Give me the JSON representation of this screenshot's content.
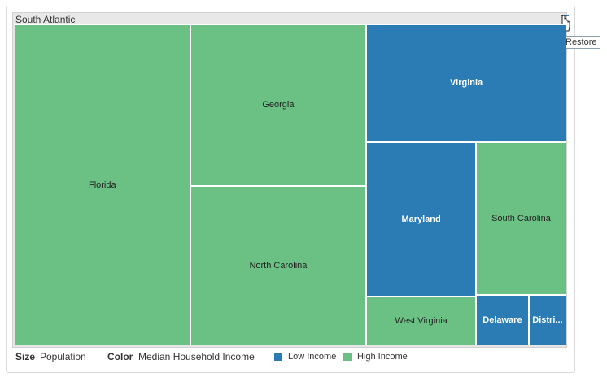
{
  "panel": {
    "title": "South Atlantic",
    "restore_tooltip": "Restore",
    "restore_icon": "hand-pointer-icon"
  },
  "legend": {
    "size_key": "Size",
    "size_value": "Population",
    "color_key": "Color",
    "color_value": "Median Household Income",
    "items": [
      {
        "label": "Low Income",
        "color": "#2b7bb5"
      },
      {
        "label": "High Income",
        "color": "#6bc084"
      }
    ]
  },
  "chart_data": {
    "type": "treemap",
    "title": "South Atlantic",
    "size_measure": "Population",
    "color_measure": "Median Household Income",
    "categories": [
      {
        "name": "Florida",
        "size": 19.6,
        "color_group": "High Income"
      },
      {
        "name": "Georgia",
        "size": 9.9,
        "color_group": "High Income"
      },
      {
        "name": "North Carolina",
        "size": 9.8,
        "color_group": "High Income"
      },
      {
        "name": "Virginia",
        "size": 8.2,
        "color_group": "Low Income"
      },
      {
        "name": "Maryland",
        "size": 5.9,
        "color_group": "Low Income"
      },
      {
        "name": "South Carolina",
        "size": 4.8,
        "color_group": "High Income"
      },
      {
        "name": "West Virginia",
        "size": 1.85,
        "color_group": "High Income"
      },
      {
        "name": "Delaware",
        "size": 0.93,
        "color_group": "Low Income"
      },
      {
        "name": "Distri...",
        "size": 0.66,
        "color_group": "Low Income"
      }
    ],
    "colors": {
      "Low Income": "#2b7bb5",
      "High Income": "#6bc084"
    }
  }
}
